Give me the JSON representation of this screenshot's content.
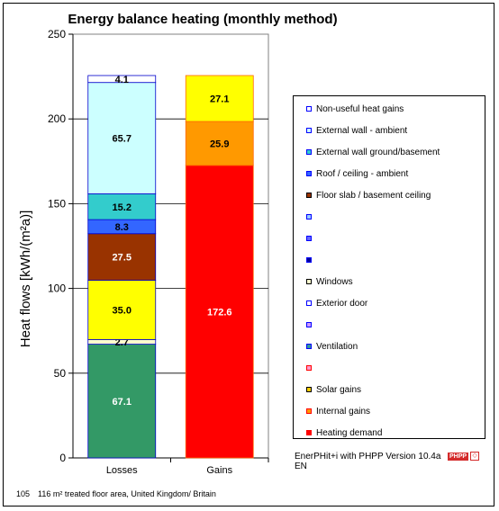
{
  "chart_data": {
    "type": "bar",
    "stacked": true,
    "title": "Energy balance heating (monthly method)",
    "ylabel": "Heat flows [kWh/(m²a)]",
    "xlabel": "",
    "ylim": [
      0,
      250
    ],
    "yticks": [
      0,
      50,
      100,
      150,
      200,
      250
    ],
    "categories": [
      "Losses",
      "Gains"
    ],
    "bars": [
      {
        "category": "Losses",
        "segments": [
          {
            "label": "",
            "value": 67.1,
            "display": "67.1",
            "color": "#339966",
            "text_color": "#ffffff"
          },
          {
            "label": "",
            "value": 2.7,
            "display": "2.7",
            "color": "#ffffcc",
            "text_color": "#000000"
          },
          {
            "label": "",
            "value": 35.0,
            "display": "35.0",
            "color": "#ffff00",
            "text_color": "#000000"
          },
          {
            "label": "",
            "value": 27.5,
            "display": "27.5",
            "color": "#993300",
            "text_color": "#ffffff"
          },
          {
            "label": "",
            "value": 8.3,
            "display": "8.3",
            "color": "#3366ff",
            "text_color": "#000000"
          },
          {
            "label": "",
            "value": 15.2,
            "display": "15.2",
            "color": "#33cccc",
            "text_color": "#000000"
          },
          {
            "label": "",
            "value": 65.7,
            "display": "65.7",
            "color": "#ccffff",
            "text_color": "#000000"
          },
          {
            "label": "",
            "value": 4.1,
            "display": "4.1",
            "color": "#ffffff",
            "text_color": "#000000"
          }
        ]
      },
      {
        "category": "Gains",
        "segments": [
          {
            "label": "",
            "value": 172.6,
            "display": "172.6",
            "color": "#ff0000",
            "text_color": "#ffffff"
          },
          {
            "label": "",
            "value": 25.9,
            "display": "25.9",
            "color": "#ff9900",
            "text_color": "#000000"
          },
          {
            "label": "",
            "value": 27.1,
            "display": "27.1",
            "color": "#ffff00",
            "text_color": "#000000"
          }
        ]
      }
    ],
    "legend_position": "right",
    "grid": "horizontal"
  },
  "legend": [
    {
      "label": "Non-useful heat gains",
      "color": "#ffffff",
      "border": "#0000ff"
    },
    {
      "label": "External wall - ambient",
      "color": "#ccffff",
      "border": "#0000ff"
    },
    {
      "label": "External wall ground/basement",
      "color": "#33cccc",
      "border": "#0000ff"
    },
    {
      "label": "Roof / ceiling - ambient",
      "color": "#3366ff",
      "border": "#0000ff"
    },
    {
      "label": "Floor slab / basement ceiling",
      "color": "#993300",
      "border": "#000000"
    },
    {
      "label": "",
      "color": "#99ccff",
      "border": "#0000ff"
    },
    {
      "label": "",
      "color": "#6666ff",
      "border": "#0000ff"
    },
    {
      "label": "",
      "color": "#000099",
      "border": "#0000ff"
    },
    {
      "label": "Windows",
      "color": "#ffffcc",
      "border": "#000000"
    },
    {
      "label": "Exterior door",
      "color": "#ffffff",
      "border": "#0000ff"
    },
    {
      "label": "",
      "color": "#cc99ff",
      "border": "#0000ff"
    },
    {
      "label": "Ventilation",
      "color": "#339999",
      "border": "#0000ff"
    },
    {
      "label": "",
      "color": "#ff99cc",
      "border": "#ff0000"
    },
    {
      "label": "Solar gains",
      "color": "#ffcc00",
      "border": "#000000"
    },
    {
      "label": "Internal gains",
      "color": "#ff9900",
      "border": "#ff0000"
    },
    {
      "label": "Heating demand",
      "color": "#ff0000",
      "border": "#ff0000"
    }
  ],
  "version_line1": "EnerPHit+i with PHPP Version 10.4a",
  "version_line2": "EN",
  "logo_text": "PHPP",
  "footer_number": "105",
  "footer_text": "116 m² treated floor area, United Kingdom/ Britain"
}
